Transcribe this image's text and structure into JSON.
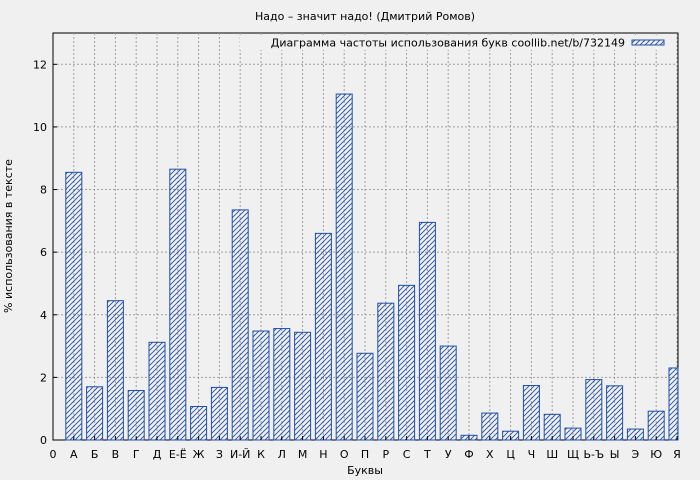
{
  "chart_data": {
    "type": "bar",
    "title": "Надо – значит надо! (Дмитрий Ромов)",
    "xlabel": "Буквы",
    "ylabel": "% использования в тексте",
    "legend": {
      "label": "Диаграмма частоты использования букв coollib.net/b/732149",
      "position": "top-right"
    },
    "ylim": [
      0,
      13
    ],
    "yticks": [
      0,
      2,
      4,
      6,
      8,
      10,
      12
    ],
    "grid": true,
    "x_tick_labels": [
      "0",
      "А",
      "Б",
      "В",
      "Г",
      "Д",
      "Е-Ё",
      "Ж",
      "З",
      "И-Й",
      "К",
      "Л",
      "М",
      "Н",
      "О",
      "П",
      "Р",
      "С",
      "Т",
      "У",
      "Ф",
      "Х",
      "Ц",
      "Ч",
      "Ш",
      "Щ",
      "Ь-Ъ",
      "Ы",
      "Э",
      "Ю",
      "Я"
    ],
    "categories": [
      "А",
      "Б",
      "В",
      "Г",
      "Д",
      "Е-Ё",
      "Ж",
      "З",
      "И-Й",
      "К",
      "Л",
      "М",
      "Н",
      "О",
      "П",
      "Р",
      "С",
      "Т",
      "У",
      "Ф",
      "Х",
      "Ц",
      "Ч",
      "Ш",
      "Щ",
      "Ь-Ъ",
      "Ы",
      "Э",
      "Ю",
      "Я"
    ],
    "values": [
      8.55,
      1.7,
      4.45,
      1.58,
      3.12,
      8.65,
      1.07,
      1.68,
      7.35,
      3.48,
      3.56,
      3.44,
      6.6,
      11.05,
      2.77,
      4.37,
      4.94,
      6.95,
      3.0,
      0.15,
      0.86,
      0.28,
      1.74,
      0.82,
      0.38,
      1.93,
      1.73,
      0.35,
      0.92,
      2.3
    ],
    "colors": {
      "bar_stroke": "#1f4fa8",
      "background": "#f0f0f0",
      "grid": "#a0a0a0"
    }
  }
}
